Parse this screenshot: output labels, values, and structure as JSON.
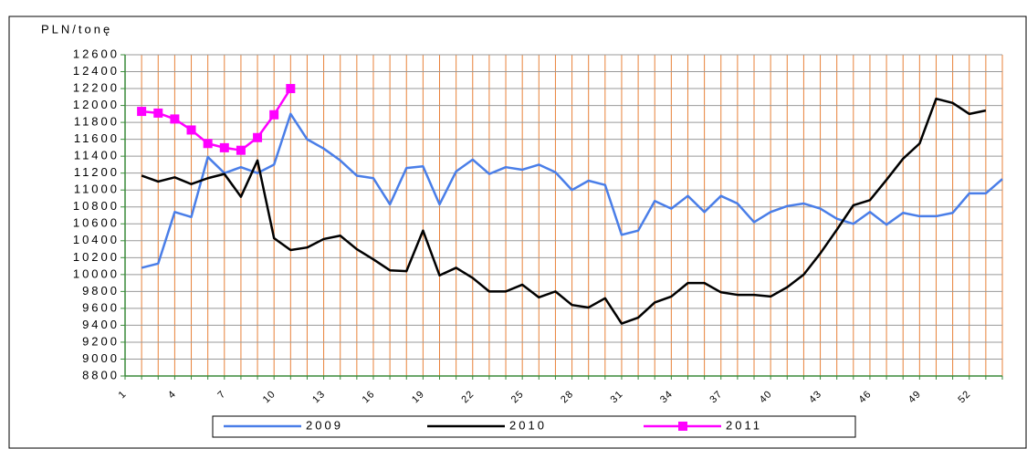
{
  "chart_data": {
    "type": "line",
    "y_label": "PLN/tonę",
    "categories": [
      1,
      null,
      null,
      4,
      null,
      null,
      7,
      null,
      null,
      10,
      null,
      null,
      13,
      null,
      null,
      16,
      null,
      null,
      19,
      null,
      null,
      22,
      null,
      null,
      25,
      null,
      null,
      28,
      null,
      null,
      31,
      null,
      null,
      34,
      null,
      null,
      37,
      null,
      null,
      40,
      null,
      null,
      43,
      null,
      null,
      46,
      null,
      null,
      49,
      null,
      null,
      52,
      null,
      null
    ],
    "ylim": [
      8800,
      12600
    ],
    "yticks": [
      8800,
      9000,
      9200,
      9400,
      9600,
      9800,
      10000,
      10200,
      10400,
      10600,
      10800,
      11000,
      11200,
      11400,
      11600,
      11800,
      12000,
      12200,
      12400,
      12600
    ],
    "grid": true,
    "series": [
      {
        "name": "2009",
        "color": "#4a7ee8",
        "values": [
          null,
          10080,
          10130,
          10740,
          10680,
          11390,
          11200,
          11270,
          11200,
          11300,
          11900,
          11600,
          11490,
          11350,
          11170,
          11140,
          10830,
          11260,
          11280,
          10830,
          11220,
          11360,
          11190,
          11270,
          11240,
          11300,
          11210,
          11000,
          11110,
          11060,
          10470,
          10520,
          10870,
          10780,
          10930,
          10740,
          10930,
          10840,
          10620,
          10740,
          10810,
          10840,
          10780,
          10660,
          10600,
          10740,
          10590,
          10730,
          10690,
          10690,
          10730,
          10960,
          10960,
          11130
        ]
      },
      {
        "name": "2010",
        "color": "#000000",
        "values": [
          null,
          11170,
          11100,
          11150,
          11070,
          11140,
          11190,
          10920,
          11350,
          10430,
          10290,
          10320,
          10420,
          10460,
          10300,
          10180,
          10050,
          10040,
          10520,
          9990,
          10080,
          9960,
          9800,
          9800,
          9880,
          9730,
          9800,
          9640,
          9610,
          9720,
          9420,
          9490,
          9670,
          9740,
          9900,
          9900,
          9790,
          9760,
          9760,
          9740,
          9850,
          10000,
          10250,
          10530,
          10820,
          10880,
          11120,
          11370,
          11550,
          12080,
          12030,
          11900,
          11940,
          null
        ]
      },
      {
        "name": "2011",
        "color": "#ff00ff",
        "marker": "square",
        "values": [
          null,
          11930,
          11910,
          11840,
          11710,
          11550,
          11500,
          11470,
          11620,
          11890,
          12200,
          null,
          null,
          null,
          null,
          null,
          null,
          null,
          null,
          null,
          null,
          null,
          null,
          null,
          null,
          null,
          null,
          null,
          null,
          null,
          null,
          null,
          null,
          null,
          null,
          null,
          null,
          null,
          null,
          null,
          null,
          null,
          null,
          null,
          null,
          null,
          null,
          null,
          null,
          null,
          null,
          null,
          null,
          null
        ]
      }
    ]
  }
}
